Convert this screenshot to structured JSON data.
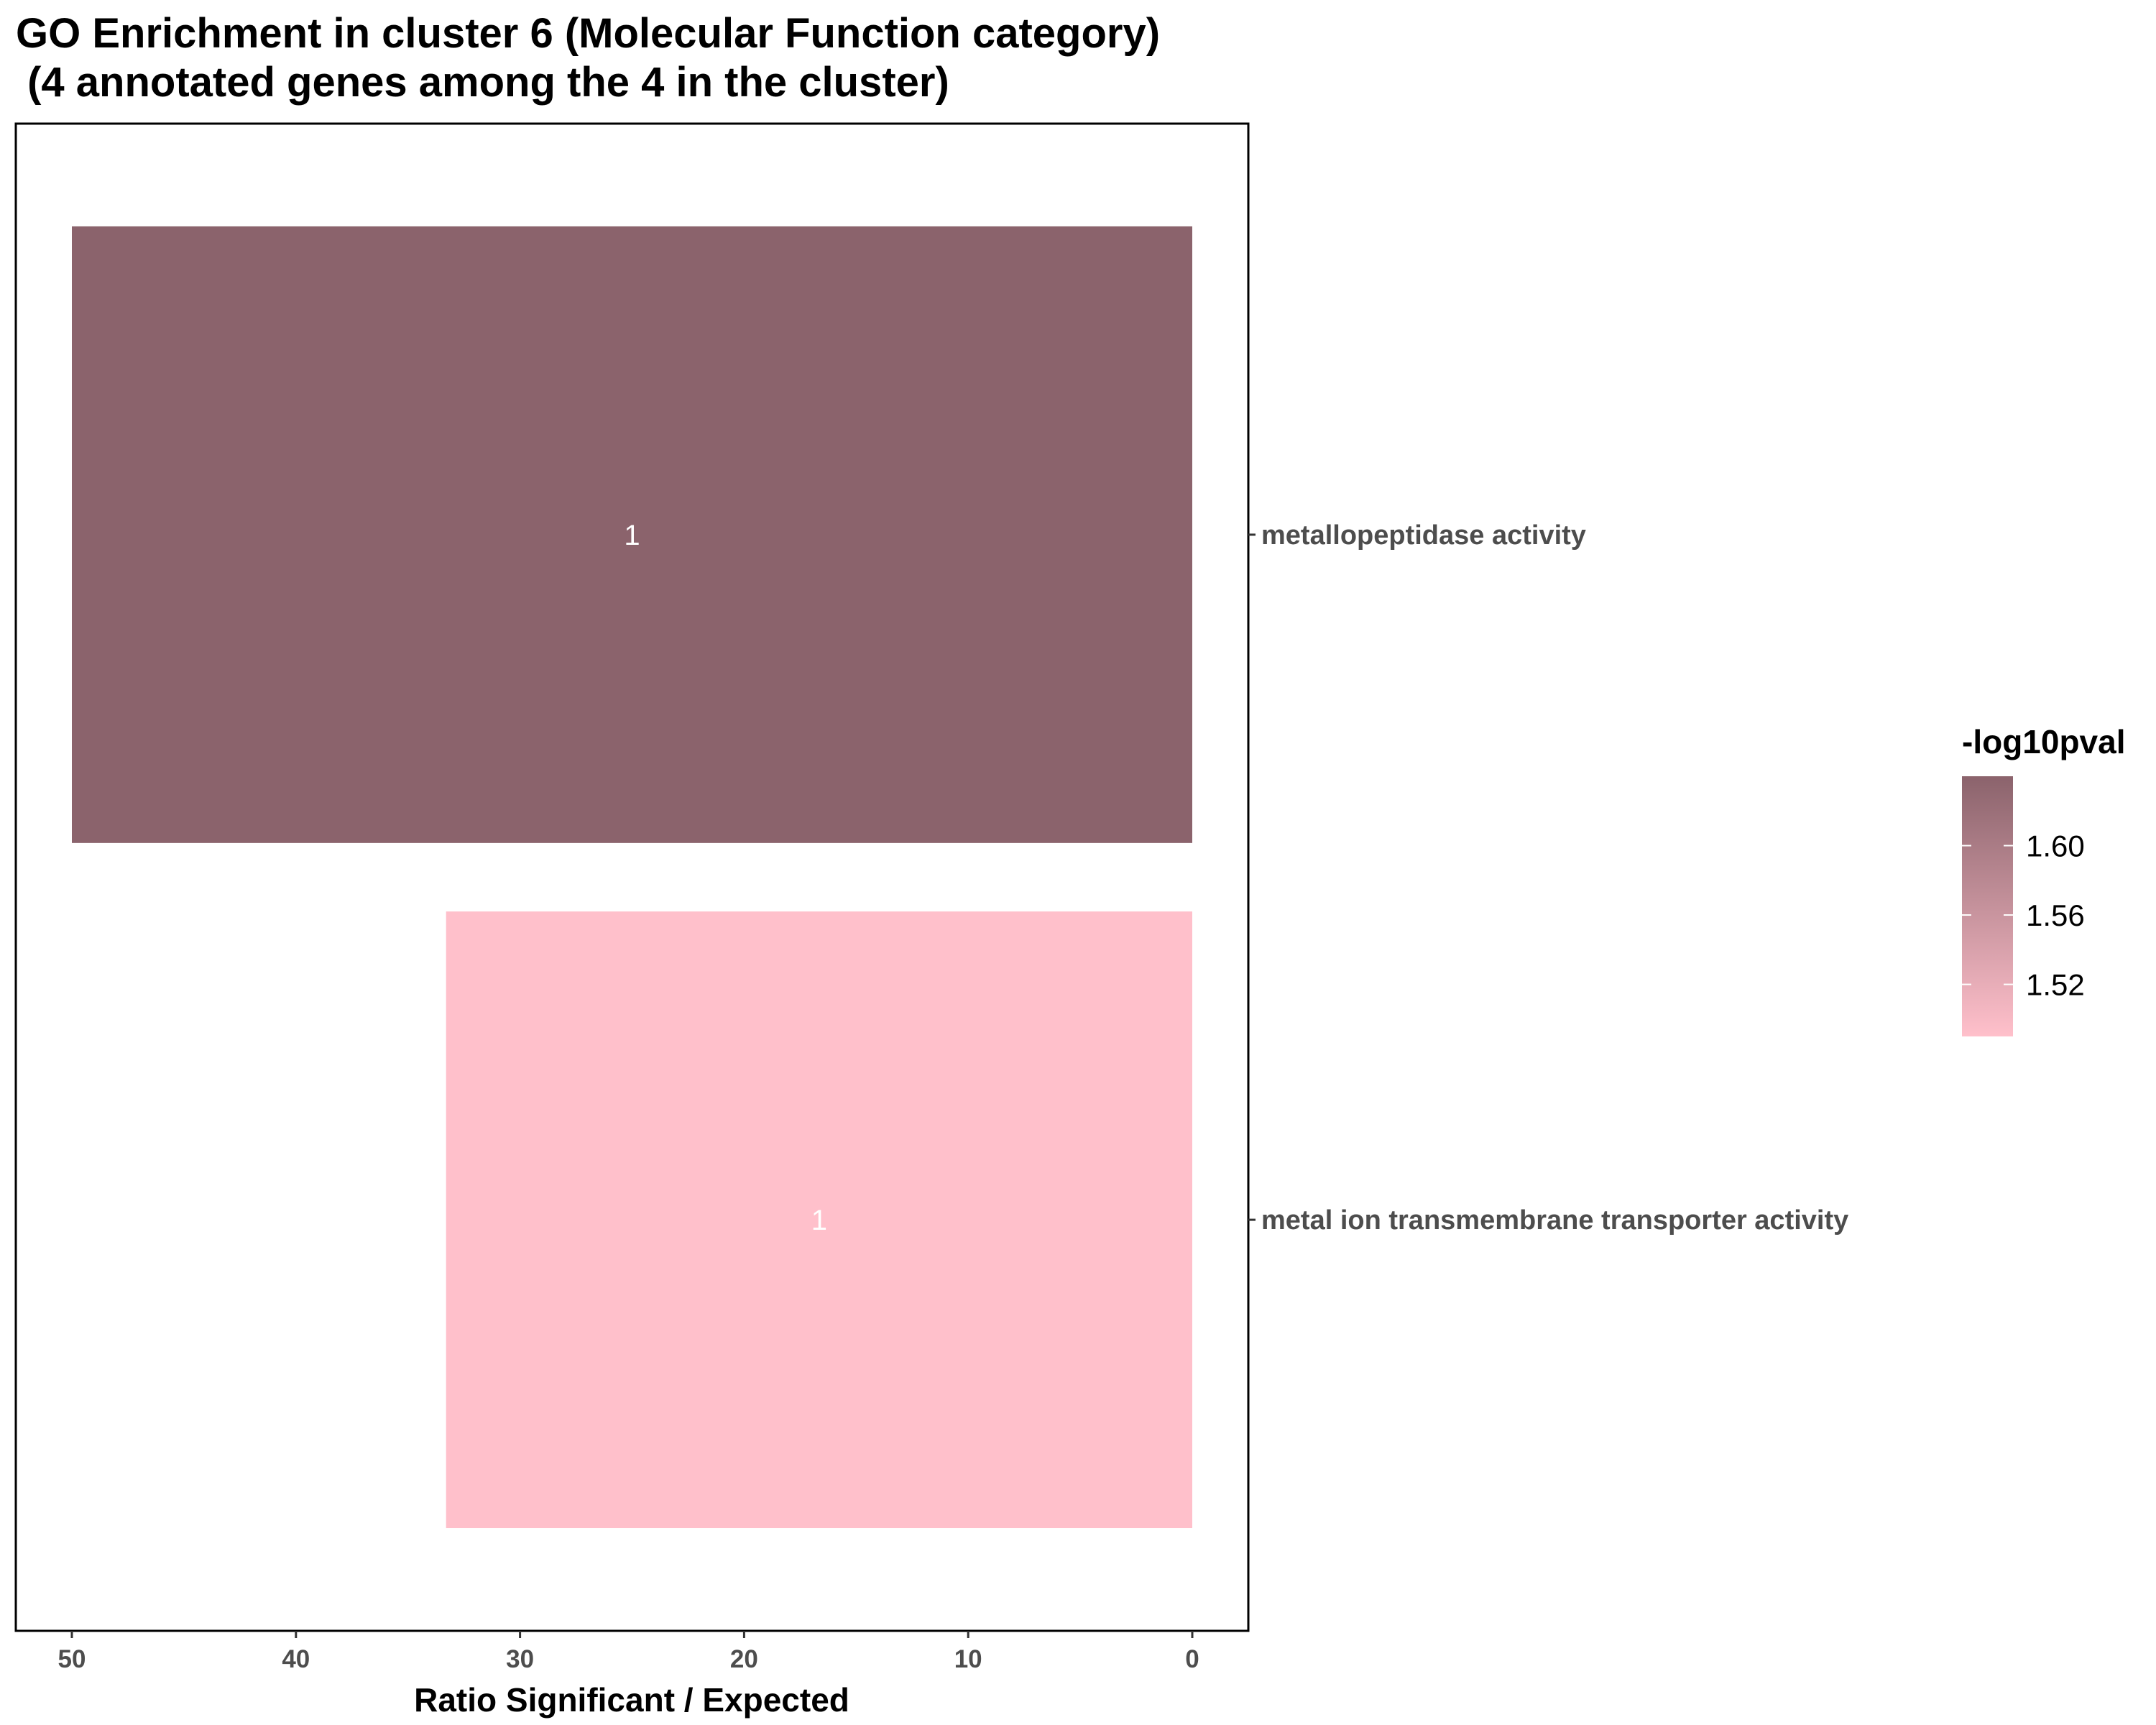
{
  "chart_data": {
    "type": "bar",
    "orientation": "horizontal",
    "title_line1": "GO Enrichment in cluster 6 (Molecular Function category)",
    "title_line2": " (4 annotated genes among the 4 in the cluster)",
    "xlabel": "Ratio Significant / Expected",
    "x_reversed": true,
    "xlim": [
      0,
      52.5
    ],
    "x_ticks": [
      50,
      40,
      30,
      20,
      10,
      0
    ],
    "categories": [
      "metallopeptidase activity",
      "metal ion transmembrane transporter activity"
    ],
    "values": [
      50,
      33.3
    ],
    "bar_labels": [
      "1",
      "1"
    ],
    "neglog10pval": [
      1.64,
      1.49
    ],
    "legend": {
      "title": "-log10pval",
      "min": 1.49,
      "max": 1.64,
      "ticks": [
        1.52,
        1.56,
        1.6
      ],
      "tick_labels": [
        "1.52",
        "1.56",
        "1.60"
      ],
      "color_low": "#ffc0cb",
      "color_high": "#8b636c",
      "placement": "right"
    },
    "grid": false
  }
}
